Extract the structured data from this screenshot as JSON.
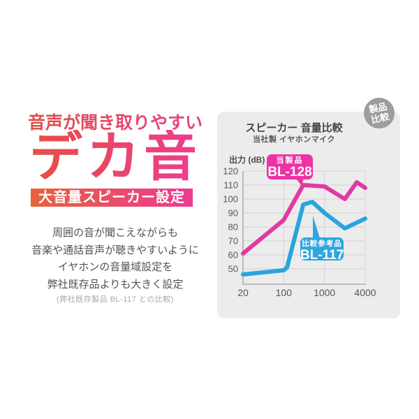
{
  "left": {
    "headline_top": "音声が聞き取りやすい",
    "headline_main": "デカ音",
    "headline_bar": "大音量スピーカー設定",
    "description_lines": [
      "周囲の音が聞こえながらも",
      "音楽や通話音声が聴きやすいように",
      "イヤホンの音量域設定を",
      "弊社既存品よりも大きく設定"
    ],
    "footnote": "(弊社既存製品 BL-117 との比較)",
    "top_gradient": [
      "#df5044",
      "#e9418f"
    ],
    "main_gradient": [
      "#e7503a",
      "#ee3a9b"
    ],
    "bar_gradient": [
      "#e6623c",
      "#ed3a93"
    ]
  },
  "badge": {
    "lines": [
      "製品",
      "比較"
    ],
    "bg": "#9d9d9d"
  },
  "panel": {
    "bg": "#ececec",
    "grid_color": "#d7d7d7",
    "axis_color": "#aeaeb2",
    "tick_color": "#565656"
  },
  "chart_data": {
    "type": "line",
    "title": "スピーカー 音量比較",
    "subtitle": "当社製 イヤホンマイク",
    "ylabel": "出力 (dB)",
    "xlabel": "",
    "x_scale": "log (ticks evenly spaced)",
    "grid": true,
    "ylim": [
      40,
      120
    ],
    "yticks": [
      120,
      110,
      100,
      90,
      80,
      70,
      60,
      50
    ],
    "xticks": [
      20,
      100,
      1000,
      4000
    ],
    "series": [
      {
        "name": "BL-128",
        "callout": "当製品",
        "color": "#e139a3",
        "bubble_color": "#ee32a6",
        "points": [
          [
            20,
            61
          ],
          [
            100,
            85
          ],
          [
            300,
            110
          ],
          [
            1000,
            109
          ],
          [
            2000,
            100
          ],
          [
            3000,
            112
          ],
          [
            4000,
            108
          ]
        ]
      },
      {
        "name": "BL-117",
        "callout": "比較参考品",
        "color": "#29a4dd",
        "bubble_color": "#2fa6de",
        "points": [
          [
            20,
            46
          ],
          [
            100,
            49
          ],
          [
            120,
            51
          ],
          [
            300,
            96
          ],
          [
            500,
            98
          ],
          [
            1000,
            90
          ],
          [
            2000,
            79
          ],
          [
            4000,
            86
          ]
        ]
      }
    ]
  }
}
